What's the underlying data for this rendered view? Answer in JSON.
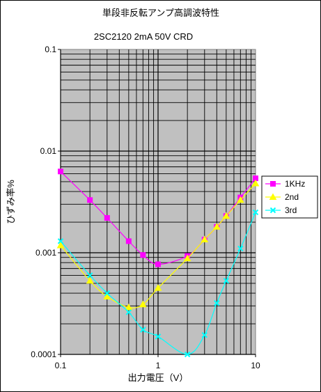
{
  "chart_data": {
    "type": "line",
    "title": "単段非反転アンプ高調波特性",
    "subtitle": "2SC2120 2mA 50V CRD",
    "xlabel": "出力電圧（V）",
    "ylabel": "ひずみ率%",
    "x_scale": "log",
    "y_scale": "log",
    "xlim": [
      0.1,
      10
    ],
    "ylim": [
      0.0001,
      0.1
    ],
    "grid": true,
    "legend_position": "right",
    "plot_background": "#c0c0c0",
    "x_tick_labels": [
      "0.1",
      "1",
      "10"
    ],
    "y_tick_labels": [
      "0.1",
      "0.01",
      "0.001",
      "0.0001"
    ],
    "series": [
      {
        "name": "1KHz",
        "color": "#ff00ff",
        "marker": "square",
        "x": [
          0.1,
          0.2,
          0.3,
          0.5,
          0.7,
          1,
          2,
          3,
          4,
          5,
          7,
          10
        ],
        "y": [
          0.0063,
          0.0033,
          0.0022,
          0.0013,
          0.00095,
          0.00077,
          0.00093,
          0.00135,
          0.0018,
          0.0023,
          0.0035,
          0.0054
        ]
      },
      {
        "name": "2nd",
        "color": "#ffff00",
        "marker": "triangle",
        "x": [
          0.1,
          0.2,
          0.3,
          0.5,
          0.7,
          1,
          2,
          3,
          4,
          5,
          7,
          10
        ],
        "y": [
          0.00118,
          0.00053,
          0.00037,
          0.00029,
          0.00031,
          0.00045,
          0.00088,
          0.00135,
          0.0018,
          0.0023,
          0.0033,
          0.0048
        ]
      },
      {
        "name": "3rd",
        "color": "#00ffff",
        "marker": "x",
        "x": [
          0.1,
          0.2,
          0.3,
          0.5,
          0.7,
          1,
          2,
          3,
          4,
          5,
          7,
          10
        ],
        "y": [
          0.0013,
          0.0006,
          0.0004,
          0.00026,
          0.000175,
          0.00015,
          0.0001,
          0.000155,
          0.00032,
          0.00053,
          0.0011,
          0.0025
        ]
      }
    ]
  }
}
